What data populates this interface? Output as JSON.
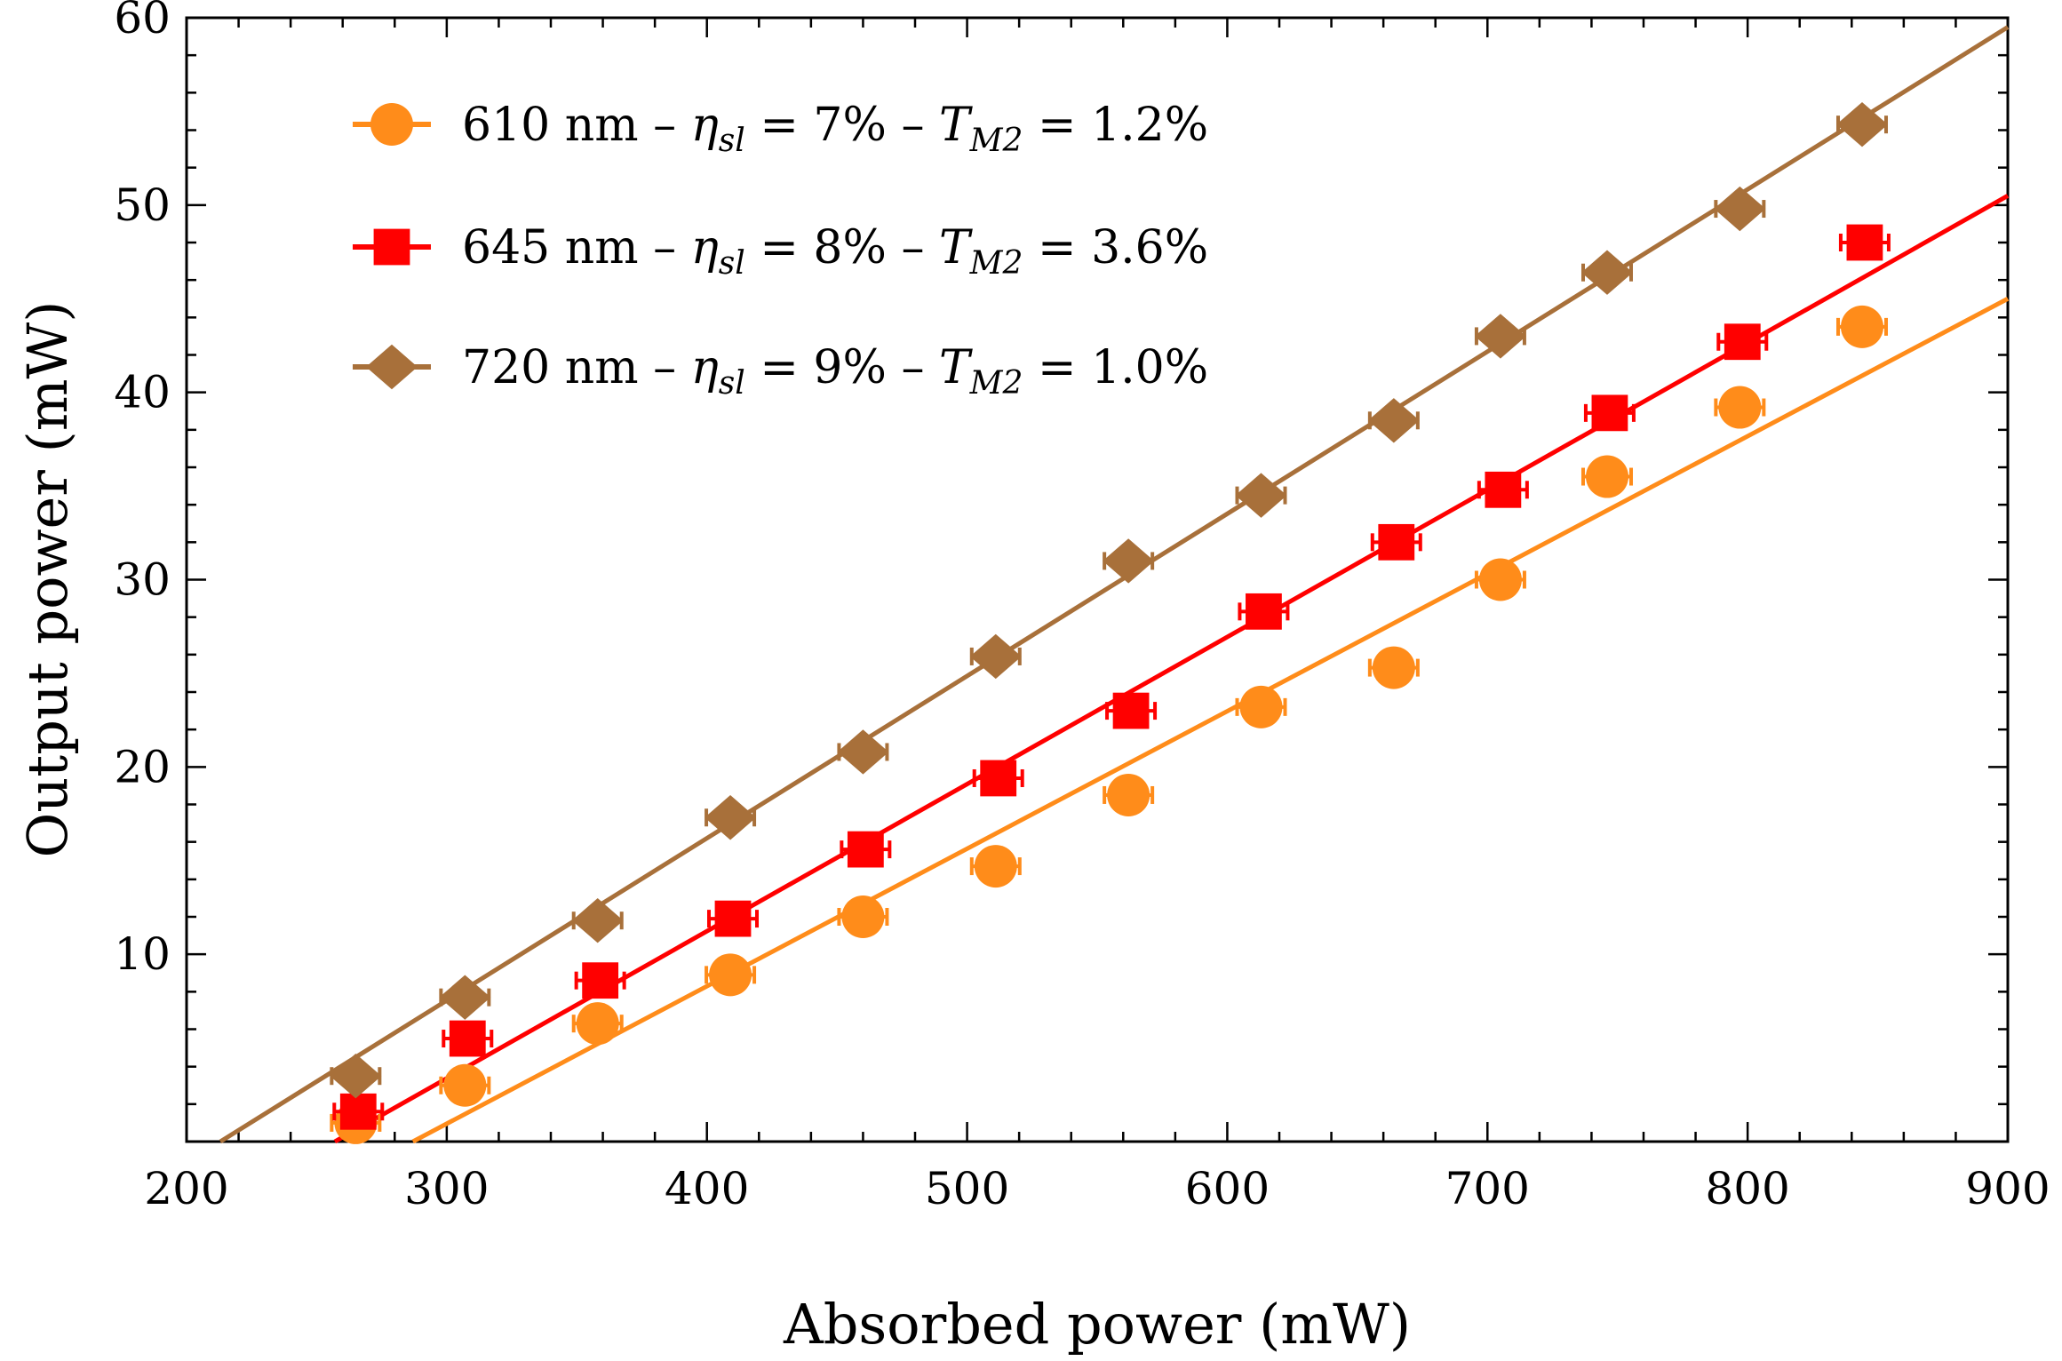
{
  "chart_data": {
    "type": "scatter",
    "title": "",
    "xlabel": "Absorbed power (mW)",
    "ylabel": "Output power (mW)",
    "xlim": [
      200,
      900
    ],
    "ylim": [
      0,
      60
    ],
    "x_ticks": [
      200,
      300,
      400,
      500,
      600,
      700,
      800,
      900
    ],
    "y_ticks": [
      10,
      20,
      30,
      40,
      50,
      60
    ],
    "x_ticks_labels": [
      "200",
      "300",
      "400",
      "500",
      "600",
      "700",
      "800",
      "900"
    ],
    "y_ticks_labels": [
      "10",
      "20",
      "30",
      "40",
      "50",
      "60"
    ],
    "legend_position": "top-left",
    "series": [
      {
        "name": "610 nm",
        "legend": {
          "wavelength": "610 nm",
          "eta_symbol": "η",
          "eta_sub": "sl",
          "eta_value": "= 7%",
          "t_symbol": "T",
          "t_sub": "M2",
          "t_value": "= 1.2%",
          "dash": "–"
        },
        "color": "#ff8c1a",
        "marker": "circle",
        "x": [
          265,
          307,
          358,
          409,
          460,
          511,
          562,
          613,
          664,
          705,
          746,
          797,
          844
        ],
        "y": [
          1.0,
          3.0,
          6.3,
          8.9,
          12.0,
          14.7,
          18.5,
          23.2,
          25.3,
          30.0,
          35.5,
          39.2,
          43.5
        ],
        "fit": {
          "x": [
            287,
            900
          ],
          "y": [
            0,
            45.0
          ]
        }
      },
      {
        "name": "645 nm",
        "legend": {
          "wavelength": "645 nm",
          "eta_symbol": "η",
          "eta_sub": "sl",
          "eta_value": "= 8%",
          "t_symbol": "T",
          "t_sub": "M2",
          "t_value": "= 3.6%",
          "dash": "–"
        },
        "color": "#ff0000",
        "marker": "square",
        "x": [
          266,
          308,
          359,
          410,
          461,
          512,
          563,
          614,
          665,
          706,
          747,
          798,
          845
        ],
        "y": [
          1.6,
          5.5,
          8.6,
          11.9,
          15.6,
          19.4,
          23.0,
          28.3,
          32.0,
          34.8,
          38.9,
          42.7,
          48.0
        ],
        "fit": {
          "x": [
            257,
            900
          ],
          "y": [
            0,
            50.5
          ]
        }
      },
      {
        "name": "720 nm",
        "legend": {
          "wavelength": "720 nm",
          "eta_symbol": "η",
          "eta_sub": "sl",
          "eta_value": "= 9%",
          "t_symbol": "T",
          "t_sub": "M2",
          "t_value": "= 1.0%",
          "dash": "–"
        },
        "color": "#a8703a",
        "marker": "diamond",
        "x": [
          265,
          307,
          358,
          409,
          460,
          511,
          562,
          613,
          664,
          705,
          746,
          797,
          844
        ],
        "y": [
          3.5,
          7.7,
          11.8,
          17.3,
          20.8,
          25.9,
          31.0,
          34.5,
          38.5,
          43.0,
          46.4,
          49.8,
          54.3
        ],
        "fit": {
          "x": [
            213,
            900
          ],
          "y": [
            0,
            59.5
          ]
        }
      }
    ]
  }
}
